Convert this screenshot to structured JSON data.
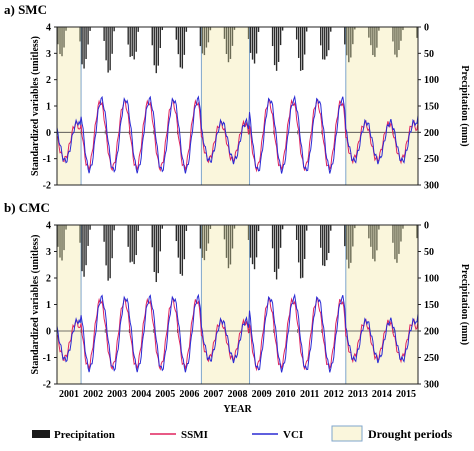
{
  "figure": {
    "legend": [
      {
        "label": "Precipitation",
        "kind": "bar",
        "color": "#1a1a1a"
      },
      {
        "label": "SSMI",
        "kind": "line",
        "color": "#e0245e"
      },
      {
        "label": "VCI",
        "kind": "line",
        "color": "#2a2ad4"
      },
      {
        "label": "Drought periods",
        "kind": "box",
        "color": "#faf6dc"
      }
    ]
  },
  "chart_data": [
    {
      "type": "line",
      "panel_label": "a) SMC",
      "ylabel": "Standardized variables (unitless)",
      "y2label": "Precipitation (mm)",
      "ylim": [
        -2,
        4
      ],
      "yticks": [
        -2,
        -1,
        0,
        1,
        2,
        3,
        4
      ],
      "y2lim": [
        0,
        300
      ],
      "y2_inverted": true,
      "y2ticks": [
        0,
        50,
        100,
        150,
        200,
        250,
        300
      ],
      "x_range_years": [
        2001,
        2016
      ],
      "drought_periods": [
        [
          2001,
          2002
        ],
        [
          2007,
          2009
        ],
        [
          2013,
          2016
        ]
      ],
      "series": [
        {
          "name": "SSMI",
          "color": "#e0245e",
          "amplitude": 1.25,
          "phase": 0.55
        },
        {
          "name": "VCI",
          "color": "#2a2ad4",
          "amplitude": 1.35,
          "phase": 0.6
        },
        {
          "name": "Precipitation",
          "color": "#1a1a1a",
          "kind": "bar",
          "axis": "right",
          "monthly_mm_peak": 90
        }
      ]
    },
    {
      "type": "line",
      "panel_label": "b) CMC",
      "ylabel": "Standardized variables (unitless)",
      "y2label": "Precipitation (mm)",
      "ylim": [
        -2,
        4
      ],
      "yticks": [
        -2,
        -1,
        0,
        1,
        2,
        3,
        4
      ],
      "y2lim": [
        0,
        300
      ],
      "y2_inverted": true,
      "y2ticks": [
        0,
        50,
        100,
        150,
        200,
        250,
        300
      ],
      "xlabel": "YEAR",
      "xticks": [
        "2001",
        "2002",
        "2003",
        "2004",
        "2005",
        "2006",
        "2007",
        "2008",
        "2009",
        "2010",
        "2011",
        "2012",
        "2013",
        "2014",
        "2015"
      ],
      "x_range_years": [
        2001,
        2016
      ],
      "drought_periods": [
        [
          2001,
          2002
        ],
        [
          2007,
          2009
        ],
        [
          2013,
          2016
        ]
      ],
      "series": [
        {
          "name": "SSMI",
          "color": "#e0245e",
          "amplitude": 1.25,
          "phase": 0.55
        },
        {
          "name": "VCI",
          "color": "#2a2ad4",
          "amplitude": 1.35,
          "phase": 0.6
        },
        {
          "name": "Precipitation",
          "color": "#1a1a1a",
          "kind": "bar",
          "axis": "right",
          "monthly_mm_peak": 110
        }
      ]
    }
  ]
}
